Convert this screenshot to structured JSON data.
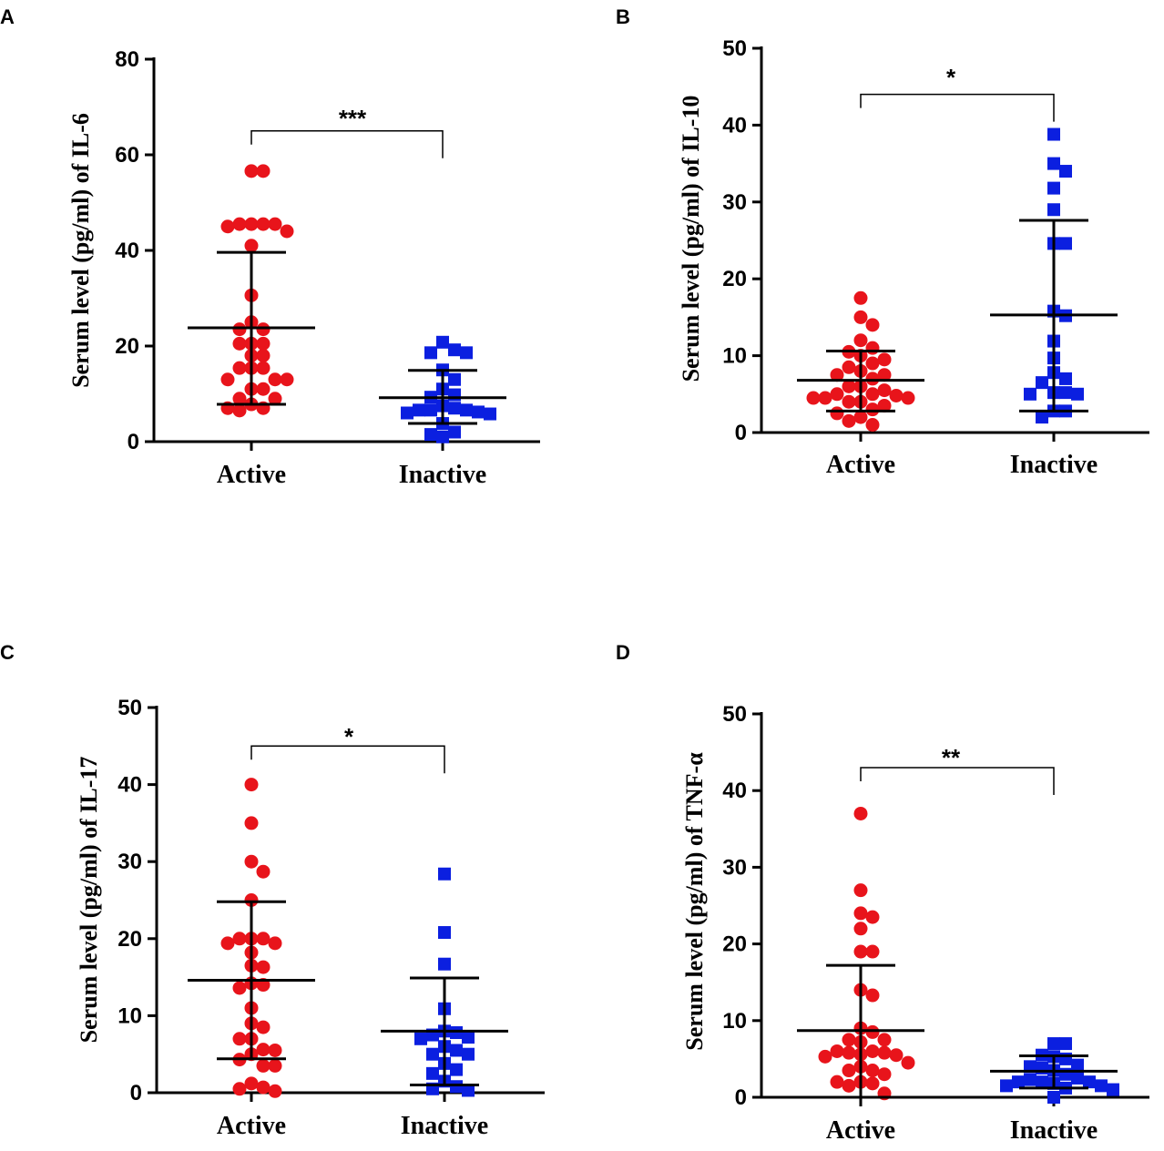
{
  "chart_data": [
    {
      "type": "scatter",
      "panel": "A",
      "ylabel": "Serum level (pg/ml) of IL-6",
      "categories": [
        "Active",
        "Inactive"
      ],
      "ylim": [
        0,
        80
      ],
      "yticks": [
        0,
        20,
        40,
        60,
        80
      ],
      "significance": "***",
      "bracket_height": 65,
      "series": [
        {
          "name": "Active",
          "marker": "circle",
          "mean": 23.8,
          "sd_low": 7.8,
          "sd_high": 39.6,
          "values": [
            56.6,
            56.6,
            45.5,
            45.5,
            45.5,
            45.5,
            45.0,
            44.0,
            41.0,
            30.6,
            25.0,
            23.5,
            23.5,
            20.5,
            20.5,
            20.5,
            18.0,
            18.0,
            15.4,
            15.4,
            15.4,
            13.0,
            13.0,
            13.0,
            11.0,
            11.0,
            9.0,
            9.0,
            7.8,
            7.0,
            7.0,
            6.5
          ]
        },
        {
          "name": "Inactive",
          "marker": "square",
          "mean": 9.2,
          "sd_low": 3.8,
          "sd_high": 14.9,
          "values": [
            20.8,
            19.2,
            18.6,
            18.6,
            15.0,
            13.0,
            11.0,
            9.8,
            9.3,
            7.5,
            7.0,
            6.6,
            6.6,
            6.6,
            6.2,
            6.0,
            5.8,
            3.8,
            2.0,
            1.5,
            1.0
          ]
        }
      ]
    },
    {
      "type": "scatter",
      "panel": "B",
      "ylabel": "Serum level (pg/ml) of IL-10",
      "categories": [
        "Active",
        "Inactive"
      ],
      "ylim": [
        0,
        50
      ],
      "yticks": [
        0,
        10,
        20,
        30,
        40,
        50
      ],
      "significance": "*",
      "bracket_height": 44,
      "series": [
        {
          "name": "Active",
          "marker": "circle",
          "mean": 6.8,
          "sd_low": 2.8,
          "sd_high": 10.6,
          "values": [
            17.5,
            15.0,
            14.0,
            12.0,
            11.0,
            10.5,
            10.0,
            9.5,
            9.0,
            8.5,
            8.0,
            7.5,
            7.5,
            7.0,
            6.0,
            6.0,
            5.5,
            5.0,
            5.0,
            4.8,
            4.5,
            4.5,
            4.5,
            4.0,
            4.0,
            3.5,
            3.0,
            2.5,
            2.0,
            1.5,
            1.0
          ]
        },
        {
          "name": "Inactive",
          "marker": "square",
          "mean": 15.3,
          "sd_low": 2.8,
          "sd_high": 27.6,
          "values": [
            38.8,
            35.0,
            34.0,
            31.8,
            29.0,
            24.6,
            24.6,
            15.8,
            15.2,
            11.9,
            9.7,
            7.8,
            7.0,
            6.5,
            5.2,
            5.2,
            5.0,
            5.0,
            2.8,
            2.8,
            2.0
          ]
        }
      ]
    },
    {
      "type": "scatter",
      "panel": "C",
      "ylabel": "Serum level (pg/ml) of IL-17",
      "categories": [
        "Active",
        "Inactive"
      ],
      "ylim": [
        0,
        50
      ],
      "yticks": [
        0,
        10,
        20,
        30,
        40,
        50
      ],
      "significance": "*",
      "bracket_height": 45,
      "series": [
        {
          "name": "Active",
          "marker": "circle",
          "mean": 14.6,
          "sd_low": 4.4,
          "sd_high": 24.8,
          "values": [
            40.0,
            35.0,
            30.0,
            28.7,
            25.0,
            20.0,
            20.0,
            20.0,
            19.4,
            19.4,
            18.2,
            16.5,
            16.3,
            14.2,
            14.0,
            13.6,
            11.0,
            9.0,
            8.5,
            7.0,
            7.0,
            5.6,
            5.5,
            5.0,
            4.3,
            3.5,
            3.5,
            1.2,
            0.7,
            0.5,
            0.2
          ]
        },
        {
          "name": "Inactive",
          "marker": "square",
          "mean": 8.0,
          "sd_low": 1.0,
          "sd_high": 14.9,
          "values": [
            28.4,
            20.8,
            16.7,
            10.9,
            8.0,
            7.8,
            7.5,
            7.2,
            7.0,
            6.0,
            5.5,
            5.0,
            5.0,
            3.8,
            3.0,
            2.5,
            1.5,
            0.8,
            0.5,
            0.3
          ]
        }
      ]
    },
    {
      "type": "scatter",
      "panel": "D",
      "ylabel": "Serum level (pg/ml) of TNF-α",
      "categories": [
        "Active",
        "Inactive"
      ],
      "ylim": [
        0,
        50
      ],
      "yticks": [
        0,
        10,
        20,
        30,
        40,
        50
      ],
      "significance": "**",
      "bracket_height": 43,
      "series": [
        {
          "name": "Active",
          "marker": "circle",
          "mean": 8.7,
          "sd_low": 0.0,
          "sd_high": 17.2,
          "values": [
            37.0,
            27.0,
            24.0,
            23.5,
            22.0,
            19.0,
            19.0,
            14.0,
            13.3,
            9.0,
            8.5,
            7.5,
            7.5,
            7.2,
            6.0,
            6.0,
            5.8,
            5.8,
            5.6,
            5.5,
            5.3,
            4.5,
            4.0,
            3.5,
            3.5,
            3.0,
            2.0,
            2.0,
            1.8,
            1.5,
            0.5
          ]
        },
        {
          "name": "Inactive",
          "marker": "square",
          "mean": 3.4,
          "sd_low": 1.2,
          "sd_high": 5.4,
          "values": [
            7.0,
            7.0,
            5.5,
            5.3,
            5.0,
            4.2,
            4.0,
            3.8,
            3.5,
            3.0,
            2.5,
            2.3,
            2.0,
            2.0,
            2.0,
            1.8,
            1.5,
            1.5,
            1.2,
            1.0,
            0.0
          ]
        }
      ]
    }
  ],
  "colors": {
    "active": "#e8141b",
    "inactive": "#0b1fe0",
    "axis": "#000000"
  }
}
